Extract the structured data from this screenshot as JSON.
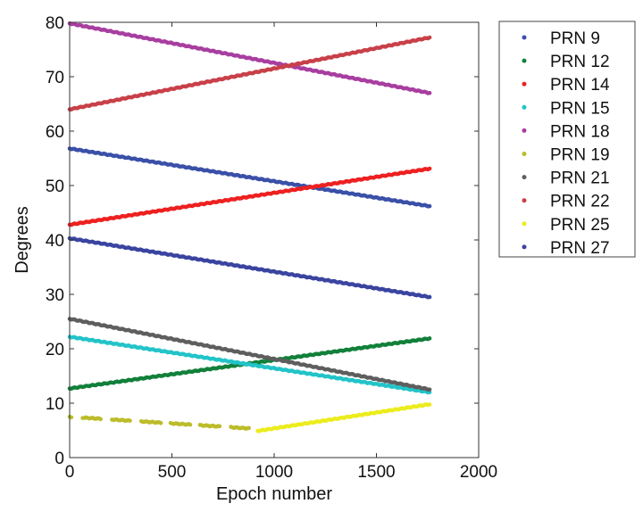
{
  "chart_data": {
    "type": "scatter",
    "title": "",
    "xlabel": "Epoch number",
    "ylabel": "Degrees",
    "xlim": [
      0,
      2000
    ],
    "ylim": [
      0,
      80
    ],
    "xticks": [
      0,
      500,
      1000,
      1500,
      2000
    ],
    "yticks": [
      0,
      10,
      20,
      30,
      40,
      50,
      60,
      70,
      80
    ],
    "grid": false,
    "legend_position": "outside-right",
    "series": [
      {
        "name": "PRN 9",
        "color": "#3a50a8",
        "points": [
          [
            0,
            56.8
          ],
          [
            1760,
            46.2
          ]
        ]
      },
      {
        "name": "PRN 12",
        "color": "#12803a",
        "points": [
          [
            0,
            12.7
          ],
          [
            1760,
            21.9
          ]
        ]
      },
      {
        "name": "PRN 14",
        "color": "#ee2020",
        "points": [
          [
            0,
            42.8
          ],
          [
            1760,
            53.1
          ]
        ]
      },
      {
        "name": "PRN 15",
        "color": "#22c4c8",
        "points": [
          [
            0,
            22.2
          ],
          [
            1760,
            12.0
          ]
        ]
      },
      {
        "name": "PRN 18",
        "color": "#a83ea0",
        "points": [
          [
            0,
            79.8
          ],
          [
            1760,
            67.0
          ]
        ]
      },
      {
        "name": "PRN 19",
        "color": "#bcbc2a",
        "points": [
          [
            0,
            7.5
          ],
          [
            900,
            5.3
          ]
        ],
        "gaps": true
      },
      {
        "name": "PRN 21",
        "color": "#5e5e5e",
        "points": [
          [
            0,
            25.5
          ],
          [
            1760,
            12.5
          ]
        ]
      },
      {
        "name": "PRN 22",
        "color": "#c84048",
        "points": [
          [
            0,
            64.0
          ],
          [
            1760,
            77.2
          ]
        ]
      },
      {
        "name": "PRN 25",
        "color": "#ecec1e",
        "points": [
          [
            920,
            4.9
          ],
          [
            1760,
            9.8
          ]
        ]
      },
      {
        "name": "PRN 27",
        "color": "#3a44a0",
        "points": [
          [
            0,
            40.3
          ],
          [
            1760,
            29.5
          ]
        ]
      }
    ]
  }
}
